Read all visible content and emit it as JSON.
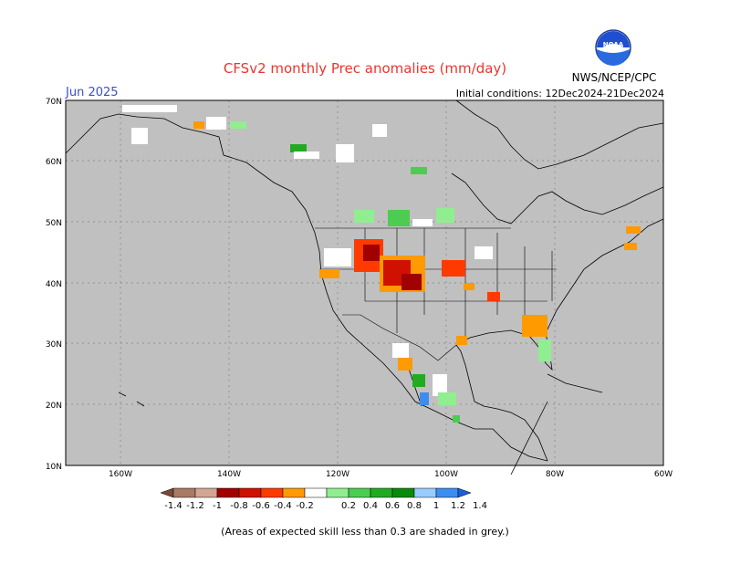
{
  "header": {
    "title": "CFSv2 monthly Prec anomalies (mm/day)",
    "valid_month": "Jun 2025",
    "initial_conditions": "Initial conditions: 12Dec2024-21Dec2024",
    "agency": "NWS/NCEP/CPC",
    "logo_text": "NOAA"
  },
  "map": {
    "lat_labels": [
      "70N",
      "60N",
      "50N",
      "40N",
      "30N",
      "20N",
      "10N"
    ],
    "lon_labels": [
      "160W",
      "140W",
      "120W",
      "100W",
      "80W",
      "60W"
    ],
    "grey_color": "#c0c0c0",
    "background": "#c0c0c0"
  },
  "colorbar": {
    "ticks": [
      "-1.4",
      "-1.2",
      "-1",
      "-0.8",
      "-0.6",
      "-0.4",
      "-0.2",
      "0.2",
      "0.4",
      "0.6",
      "0.8",
      "1",
      "1.2",
      "1.4"
    ],
    "colors": [
      "#7b4a36",
      "#a97a64",
      "#d2a594",
      "#a00000",
      "#d01000",
      "#ff3a00",
      "#ff9a00",
      "#ffffff",
      "#90ee90",
      "#4ccc50",
      "#22aa22",
      "#0a8a0a",
      "#99ccff",
      "#3b8ef0",
      "#1a5fd8"
    ]
  },
  "footer": {
    "note": "(Areas of expected skill less than 0.3 are shaded in grey.)"
  }
}
